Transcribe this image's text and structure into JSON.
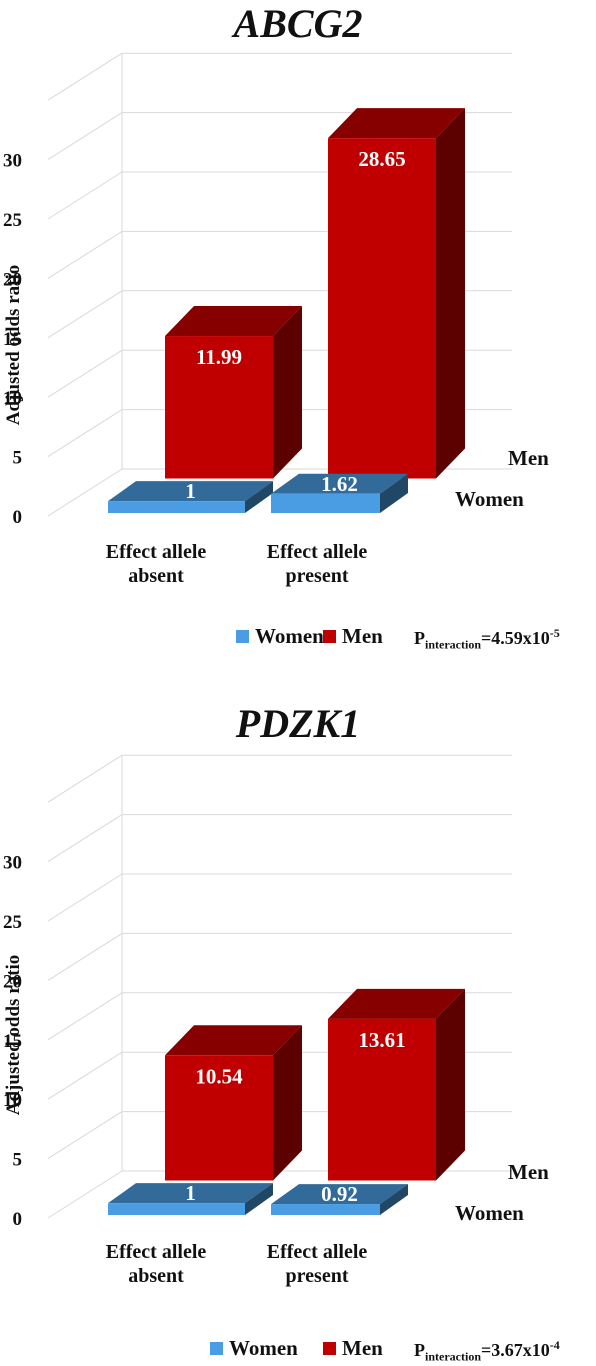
{
  "chart_data": [
    {
      "type": "bar",
      "title": "ABCG2",
      "ylabel": "Adjusted odds ratio",
      "categories": [
        "Effect allele absent",
        "Effect allele present"
      ],
      "category_lines": [
        [
          "Effect allele",
          "absent"
        ],
        [
          "Effect allele",
          "present"
        ]
      ],
      "series": [
        {
          "name": "Women",
          "values": [
            1,
            1.62
          ],
          "color": "#4a9de3"
        },
        {
          "name": "Men",
          "values": [
            11.99,
            28.65
          ],
          "color": "#c00000"
        }
      ],
      "data_labels": [
        [
          "1",
          "1.62"
        ],
        [
          "11.99",
          "28.65"
        ]
      ],
      "y_ticks": [
        0,
        5,
        10,
        15,
        20,
        25,
        30
      ],
      "ylim": [
        0,
        30
      ],
      "grid": true,
      "legend_position": "bottom",
      "p_interaction": {
        "prefix": "P",
        "subscript": "interaction",
        "text": "=4.59x10",
        "exponent": "-5"
      }
    },
    {
      "type": "bar",
      "title": "PDZK1",
      "ylabel": "Adjusted odds ratio",
      "categories": [
        "Effect allele absent",
        "Effect allele present"
      ],
      "category_lines": [
        [
          "Effect allele",
          "absent"
        ],
        [
          "Effect allele",
          "present"
        ]
      ],
      "series": [
        {
          "name": "Women",
          "values": [
            1,
            0.92
          ],
          "color": "#4a9de3"
        },
        {
          "name": "Men",
          "values": [
            10.54,
            13.61
          ],
          "color": "#c00000"
        }
      ],
      "data_labels": [
        [
          "1",
          "0.92"
        ],
        [
          "10.54",
          "13.61"
        ]
      ],
      "y_ticks": [
        0,
        5,
        10,
        15,
        20,
        25,
        30
      ],
      "ylim": [
        0,
        30
      ],
      "grid": true,
      "legend_position": "bottom",
      "p_interaction": {
        "prefix": "P",
        "subscript": "interaction",
        "text": "=3.67x10",
        "exponent": "-4"
      }
    }
  ]
}
